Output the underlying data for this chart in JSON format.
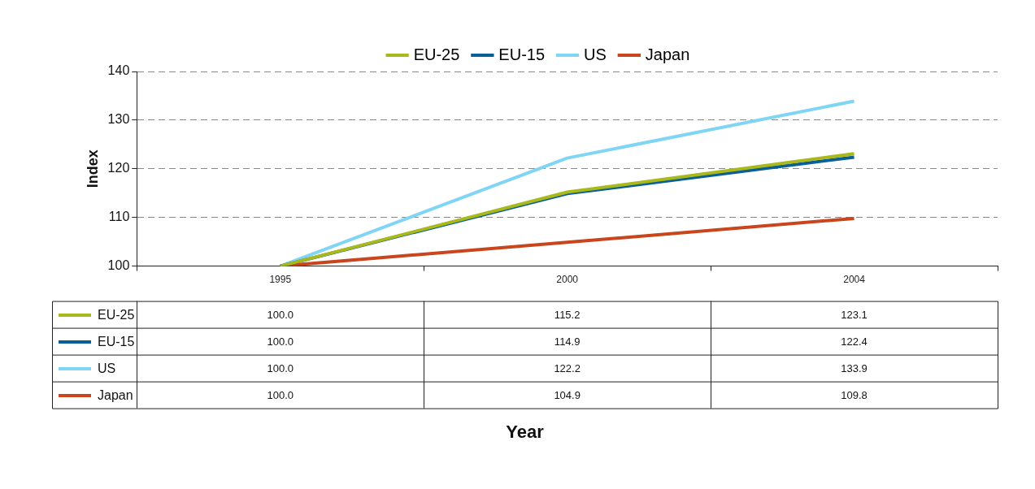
{
  "chart_data": {
    "type": "line",
    "annotations": [
      "Year"
    ],
    "ylabel": "Index",
    "categories": [
      "1995",
      "2000",
      "2004"
    ],
    "series": [
      {
        "name": "EU-25",
        "color": "#a9b91c",
        "values": [
          100.0,
          115.2,
          123.1
        ],
        "value_labels": [
          "100.0",
          "115.2",
          "123.1"
        ]
      },
      {
        "name": "EU-15",
        "color": "#0a5f96",
        "values": [
          100.0,
          114.9,
          122.4
        ],
        "value_labels": [
          "100.0",
          "114.9",
          "122.4"
        ]
      },
      {
        "name": "US",
        "color": "#80d4f4",
        "values": [
          100.0,
          122.2,
          133.9
        ],
        "value_labels": [
          "100.0",
          "122.2",
          "133.9"
        ]
      },
      {
        "name": "Japan",
        "color": "#c9461d",
        "values": [
          100.0,
          104.9,
          109.8
        ],
        "value_labels": [
          "100.0",
          "104.9",
          "109.8"
        ]
      }
    ],
    "ylim": [
      100,
      140
    ],
    "yticks": [
      100,
      110,
      120,
      130,
      140
    ],
    "grid": "y",
    "legend": "top",
    "marker": "none",
    "line_style": "solid"
  }
}
